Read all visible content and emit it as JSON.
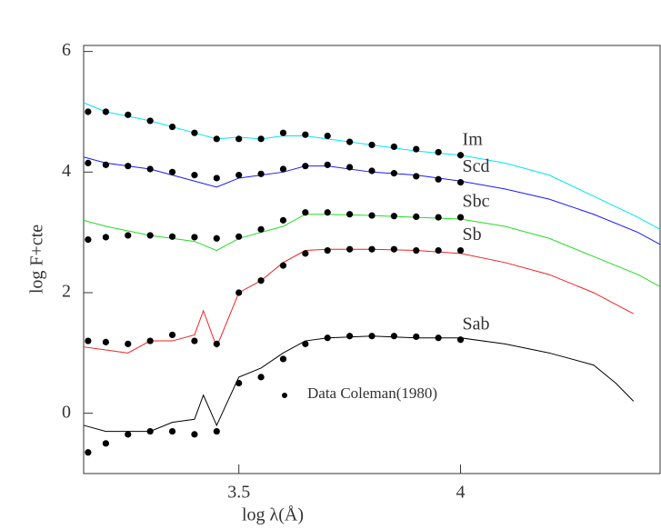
{
  "chart_data": {
    "type": "line",
    "xlabel": "log λ(Å)",
    "ylabel": "log F+cte",
    "xlim": [
      3.15,
      4.45
    ],
    "ylim": [
      -1,
      6.1
    ],
    "xticks": [
      3.5,
      4
    ],
    "yticks": [
      0,
      2,
      4,
      6
    ],
    "series": [
      {
        "name": "Im",
        "color": "#00e5ee",
        "x": [
          3.15,
          3.2,
          3.3,
          3.4,
          3.45,
          3.5,
          3.55,
          3.6,
          3.65,
          3.7,
          3.8,
          3.9,
          4.0,
          4.1,
          4.2,
          4.3,
          4.4,
          4.45
        ],
        "values": [
          5.15,
          5.0,
          4.85,
          4.65,
          4.55,
          4.58,
          4.55,
          4.6,
          4.6,
          4.55,
          4.45,
          4.35,
          4.28,
          4.15,
          3.95,
          3.6,
          3.25,
          3.05
        ]
      },
      {
        "name": "Scd",
        "color": "#1a1aff",
        "x": [
          3.15,
          3.2,
          3.3,
          3.4,
          3.45,
          3.5,
          3.55,
          3.6,
          3.65,
          3.7,
          3.8,
          3.9,
          4.0,
          4.1,
          4.2,
          4.3,
          4.4,
          4.45
        ],
        "values": [
          4.25,
          4.15,
          4.05,
          3.85,
          3.75,
          3.9,
          3.95,
          4.0,
          4.1,
          4.1,
          4.0,
          3.95,
          3.85,
          3.72,
          3.55,
          3.3,
          3.0,
          2.8
        ]
      },
      {
        "name": "Sbc",
        "color": "#22dd22",
        "x": [
          3.15,
          3.2,
          3.3,
          3.4,
          3.45,
          3.5,
          3.55,
          3.6,
          3.65,
          3.7,
          3.8,
          3.9,
          4.0,
          4.1,
          4.2,
          4.3,
          4.4,
          4.45
        ],
        "values": [
          3.2,
          3.1,
          2.95,
          2.85,
          2.7,
          2.9,
          3.0,
          3.1,
          3.3,
          3.3,
          3.28,
          3.25,
          3.22,
          3.1,
          2.9,
          2.6,
          2.3,
          2.1
        ]
      },
      {
        "name": "Sb",
        "color": "#ee2222",
        "x": [
          3.15,
          3.2,
          3.25,
          3.3,
          3.35,
          3.4,
          3.42,
          3.45,
          3.5,
          3.55,
          3.6,
          3.65,
          3.7,
          3.8,
          3.9,
          4.0,
          4.1,
          4.2,
          4.3,
          4.39
        ],
        "values": [
          1.1,
          1.05,
          1.0,
          1.2,
          1.2,
          1.3,
          1.7,
          1.1,
          2.0,
          2.2,
          2.5,
          2.7,
          2.72,
          2.72,
          2.7,
          2.65,
          2.5,
          2.3,
          2.0,
          1.65
        ]
      },
      {
        "name": "Sab",
        "color": "#000000",
        "x": [
          3.15,
          3.2,
          3.25,
          3.3,
          3.35,
          3.4,
          3.42,
          3.45,
          3.5,
          3.55,
          3.6,
          3.65,
          3.7,
          3.8,
          3.9,
          4.0,
          4.1,
          4.2,
          4.3,
          4.35,
          4.39
        ],
        "values": [
          -0.2,
          -0.3,
          -0.3,
          -0.3,
          -0.15,
          -0.1,
          0.3,
          -0.2,
          0.6,
          0.75,
          1.0,
          1.2,
          1.25,
          1.28,
          1.25,
          1.25,
          1.15,
          1.0,
          0.8,
          0.5,
          0.2
        ]
      }
    ],
    "points": {
      "name": "Data Coleman(1980)",
      "color": "#000000",
      "x": [
        3.16,
        3.2,
        3.25,
        3.3,
        3.35,
        3.4,
        3.45,
        3.5,
        3.55,
        3.6,
        3.65,
        3.7,
        3.75,
        3.8,
        3.85,
        3.9,
        3.95,
        4.0
      ],
      "series": [
        {
          "values": [
            5.0,
            5.0,
            4.95,
            4.85,
            4.75,
            4.65,
            4.55,
            4.55,
            4.55,
            4.65,
            4.62,
            4.6,
            4.5,
            4.45,
            4.42,
            4.38,
            4.33,
            4.28
          ]
        },
        {
          "values": [
            4.15,
            4.12,
            4.1,
            4.05,
            4.0,
            3.95,
            3.9,
            3.95,
            3.97,
            4.05,
            4.1,
            4.12,
            4.08,
            4.02,
            3.98,
            3.93,
            3.88,
            3.83
          ]
        },
        {
          "values": [
            2.88,
            2.92,
            2.95,
            2.95,
            2.93,
            2.92,
            2.9,
            2.93,
            3.05,
            3.2,
            3.33,
            3.33,
            3.3,
            3.28,
            3.27,
            3.26,
            3.25,
            3.25
          ]
        },
        {
          "values": [
            1.2,
            1.18,
            1.15,
            1.2,
            1.3,
            1.2,
            1.15,
            2.0,
            2.2,
            2.45,
            2.65,
            2.7,
            2.72,
            2.72,
            2.72,
            2.7,
            2.7,
            2.7
          ]
        },
        {
          "values": [
            -0.65,
            -0.5,
            -0.35,
            -0.3,
            -0.3,
            -0.35,
            -0.3,
            0.5,
            0.6,
            0.9,
            1.15,
            1.25,
            1.28,
            1.28,
            1.28,
            1.27,
            1.25,
            1.22
          ]
        }
      ]
    }
  }
}
